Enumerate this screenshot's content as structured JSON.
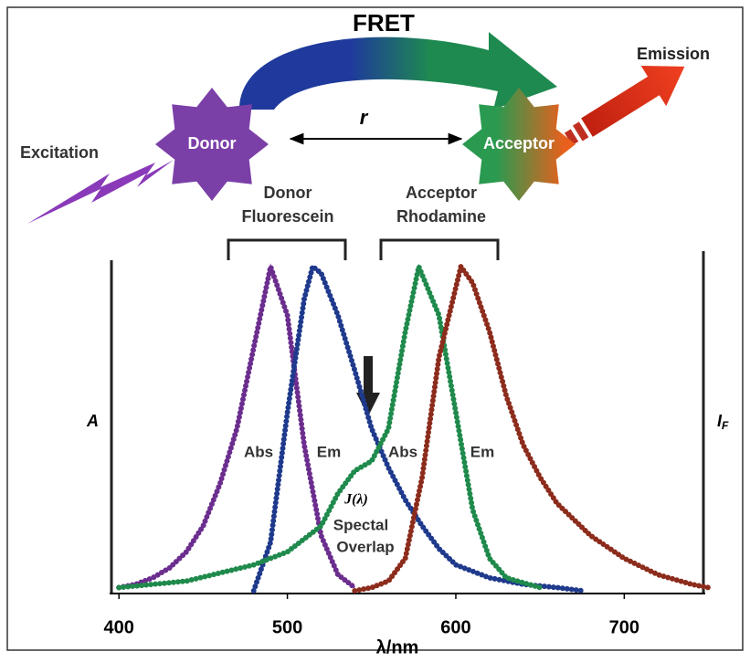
{
  "diagram": {
    "title": "FRET",
    "emission": "Emission",
    "excitation": "Excitation",
    "donor": "Donor",
    "acceptor": "Acceptor",
    "distance": "r",
    "donor_dye": [
      "Donor",
      "Fluorescein"
    ],
    "acceptor_dye": [
      "Acceptor",
      "Rhodamine"
    ]
  },
  "chart_data": {
    "type": "line",
    "annotations": {
      "overlap_symbol": "J(λ)",
      "overlap_text": [
        "Spectal",
        "Overlap"
      ]
    },
    "x_label": "λ/nm",
    "y_label": "A",
    "y2_label": {
      "main": "I",
      "sub": "F"
    },
    "xlim": [
      395,
      747
    ],
    "xticks": [
      400,
      500,
      600,
      700
    ],
    "ylim": [
      0,
      1
    ],
    "series": [
      {
        "name": "Abs",
        "color": "#6b2d8e",
        "x": [
          400,
          410,
          420,
          430,
          440,
          450,
          460,
          470,
          480,
          490,
          500,
          510,
          520,
          530,
          540
        ],
        "values": [
          0.01,
          0.02,
          0.04,
          0.07,
          0.12,
          0.2,
          0.33,
          0.5,
          0.75,
          1.0,
          0.85,
          0.45,
          0.17,
          0.05,
          0.01
        ]
      },
      {
        "name": "Em",
        "color": "#1f3a8c",
        "x": [
          480,
          490,
          500,
          510,
          515,
          520,
          530,
          540,
          550,
          560,
          570,
          580,
          590,
          600,
          620,
          640,
          660,
          675
        ],
        "values": [
          0,
          0.15,
          0.55,
          0.9,
          1.0,
          0.98,
          0.85,
          0.68,
          0.5,
          0.38,
          0.28,
          0.2,
          0.13,
          0.08,
          0.04,
          0.02,
          0.01,
          0
        ]
      },
      {
        "name": "Abs",
        "color": "#1f8a4c",
        "x": [
          400,
          440,
          480,
          500,
          520,
          530,
          540,
          550,
          560,
          570,
          578,
          590,
          600,
          610,
          620,
          630,
          650
        ],
        "values": [
          0.01,
          0.03,
          0.08,
          0.12,
          0.2,
          0.3,
          0.37,
          0.4,
          0.5,
          0.8,
          1.0,
          0.85,
          0.55,
          0.25,
          0.1,
          0.04,
          0.01
        ]
      },
      {
        "name": "Em",
        "color": "#8c2c1c",
        "x": [
          540,
          550,
          560,
          570,
          580,
          590,
          603,
          610,
          620,
          630,
          640,
          650,
          660,
          680,
          700,
          720,
          740,
          750
        ],
        "values": [
          0,
          0.01,
          0.03,
          0.1,
          0.35,
          0.72,
          1.0,
          0.95,
          0.8,
          0.6,
          0.45,
          0.35,
          0.27,
          0.17,
          0.1,
          0.05,
          0.02,
          0.01
        ]
      }
    ]
  }
}
